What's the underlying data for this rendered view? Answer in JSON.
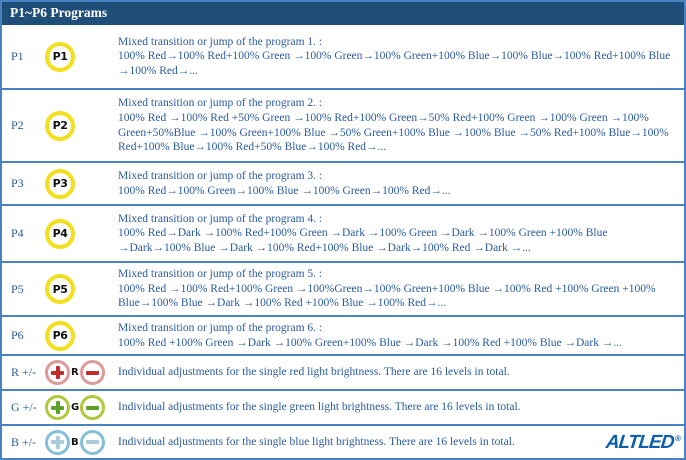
{
  "header": {
    "title": "P1~P6 Programs"
  },
  "colors": {
    "header-bg": "#1F4E79",
    "header-text": "#FFFFFF",
    "body-text": "#2A5B9F",
    "border": "#4A83C4",
    "p-button-ring": "#F2DF1E",
    "p-button-text": "#111111",
    "red-ring": "#DD9A99",
    "red-sign": "#C02B2B",
    "green-ring": "#AFC93B",
    "green-sign": "#5FA229",
    "blue-ring": "#85BFDA",
    "blue-sign": "#A9CBDA",
    "logo-blue": "#0D5FAE"
  },
  "programs": [
    {
      "label": "P1",
      "button": "P1",
      "title": "Mixed transition or jump of the program 1. :",
      "sequence": "100% Red→100% Red+100% Green →100% Green→100% Green+100% Blue→100% Blue→100% Red+100% Blue →100% Red→..."
    },
    {
      "label": "P2",
      "button": "P2",
      "title": "Mixed transition or jump of the program 2. :",
      "sequence": "100% Red →100% Red +50% Green →100% Red+100% Green→50% Red+100% Green →100% Green →100% Green+50%Blue →100% Green+100% Blue →50% Green+100% Blue →100% Blue →50% Red+100% Blue→100% Red+100% Blue→100% Red+50% Blue→100% Red→..."
    },
    {
      "label": "P3",
      "button": "P3",
      "title": "Mixed transition or jump of the program 3. :",
      "sequence": "100% Red→100% Green→100% Blue →100% Green→100% Red→..."
    },
    {
      "label": "P4",
      "button": "P4",
      "title": "Mixed transition or jump of the program 4. :",
      "sequence": "100% Red→Dark →100% Red+100% Green →Dark →100% Green →Dark →100% Green +100% Blue →Dark→100% Blue →Dark →100% Red+100% Blue →Dark→100% Red →Dark →..."
    },
    {
      "label": "P5",
      "button": "P5",
      "title": "Mixed transition or jump of the program 5. :",
      "sequence": "100% Red →100% Red+100% Green →100%Green→100% Green+100% Blue →100% Red +100% Green +100% Blue→100% Blue →Dark →100% Red +100% Blue →100% Red→..."
    },
    {
      "label": "P6",
      "button": "P6",
      "title": "Mixed transition or jump of the program 6. :",
      "sequence": "100% Red +100% Green →Dark →100% Green+100% Blue →Dark →100% Red +100% Blue →Dark →..."
    }
  ],
  "adjustments": [
    {
      "label": "R +/-",
      "letter": "R",
      "description": "Individual adjustments for the single red light brightness. There are 16 levels in total."
    },
    {
      "label": "G +/-",
      "letter": "G",
      "description": "Individual adjustments for the single green light brightness. There are 16 levels in total."
    },
    {
      "label": "B +/-",
      "letter": "B",
      "description": "Individual adjustments for the single blue light brightness. There are 16 levels in total."
    }
  ],
  "logo": {
    "text": "ALTLED",
    "registered": "®"
  }
}
